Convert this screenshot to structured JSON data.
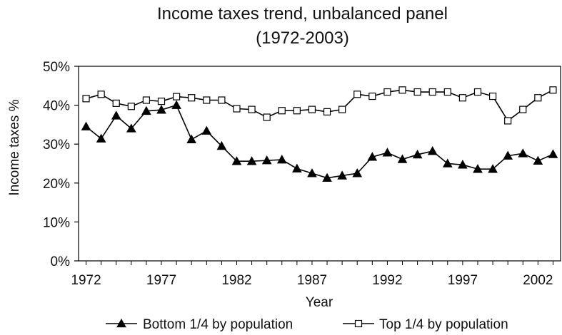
{
  "chart_data": {
    "type": "line",
    "title": "Income taxes trend, unbalanced panel",
    "subtitle": "(1972-2003)",
    "xlabel": "Year",
    "ylabel": "Income taxes %",
    "xlim": [
      1972,
      2003
    ],
    "ylim": [
      0,
      50
    ],
    "y_ticks": [
      "0%",
      "10%",
      "20%",
      "30%",
      "40%",
      "50%"
    ],
    "x_ticks": [
      "1972",
      "1977",
      "1982",
      "1987",
      "1992",
      "1997",
      "2002"
    ],
    "grid": false,
    "legend_position": "bottom",
    "x": [
      1972,
      1973,
      1974,
      1975,
      1976,
      1977,
      1978,
      1979,
      1980,
      1981,
      1982,
      1983,
      1984,
      1985,
      1986,
      1987,
      1988,
      1989,
      1990,
      1991,
      1992,
      1993,
      1994,
      1995,
      1996,
      1997,
      1998,
      1999,
      2000,
      2001,
      2002,
      2003
    ],
    "series": [
      {
        "name": "Bottom 1/4 by population",
        "marker": "filled-triangle",
        "color": "#000000",
        "values": [
          34.5,
          31.4,
          37.3,
          34.0,
          38.5,
          38.8,
          40.0,
          31.2,
          33.4,
          29.5,
          25.6,
          25.6,
          25.8,
          26.0,
          23.7,
          22.5,
          21.3,
          21.9,
          22.5,
          26.7,
          27.8,
          26.1,
          27.3,
          28.2,
          25.0,
          24.7,
          23.6,
          23.6,
          27.0,
          27.6,
          25.7,
          27.4
        ]
      },
      {
        "name": "Top 1/4 by population",
        "marker": "open-square",
        "color": "#000000",
        "values": [
          41.7,
          42.8,
          40.5,
          39.7,
          41.3,
          41.0,
          42.2,
          41.9,
          41.3,
          41.3,
          39.1,
          38.9,
          36.9,
          38.6,
          38.6,
          38.9,
          38.3,
          38.9,
          42.8,
          42.3,
          43.4,
          43.9,
          43.4,
          43.4,
          43.4,
          41.9,
          43.4,
          42.3,
          36.0,
          38.9,
          41.9,
          43.9
        ]
      }
    ]
  }
}
